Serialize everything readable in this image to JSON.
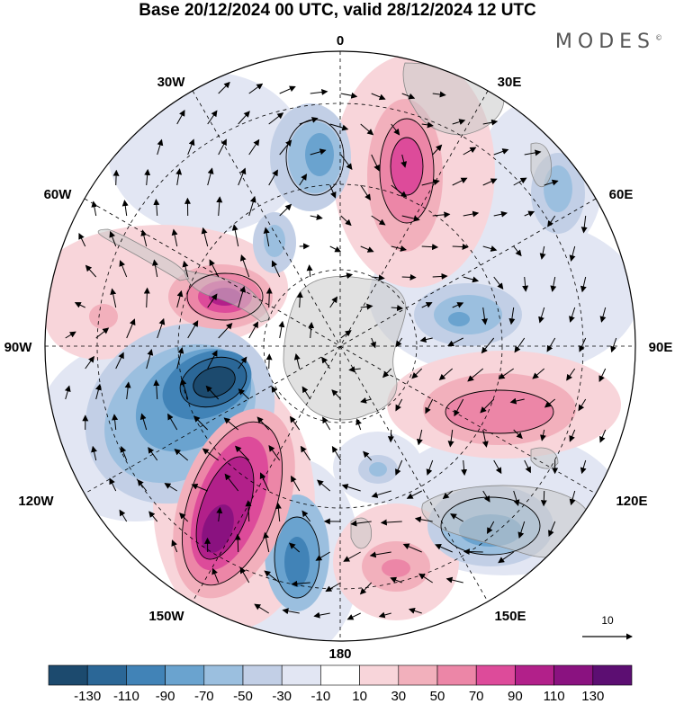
{
  "header": {
    "title": "Base 20/12/2024 00 UTC, valid 28/12/2024 12 UTC",
    "brand": "MODES",
    "brand_mark": "©"
  },
  "map": {
    "projection": "south-polar-stereographic",
    "longitude_labels": {
      "top": "0",
      "bottom": "180",
      "left": "90W",
      "right": "90E",
      "upper_left_1": "30W",
      "upper_left_2": "60W",
      "upper_right_1": "30E",
      "upper_right_2": "60E",
      "lower_left_1": "120W",
      "lower_left_2": "150W",
      "lower_right_1": "120E",
      "lower_right_2": "150E"
    },
    "reference_vector": "10"
  },
  "colorbar": {
    "labels": [
      "-130",
      "-110",
      "-90",
      "-70",
      "-50",
      "-30",
      "-10",
      "10",
      "30",
      "50",
      "70",
      "90",
      "110",
      "130"
    ],
    "colors": [
      "#1c4a6e",
      "#2b6797",
      "#4183b7",
      "#6aa3cf",
      "#9bbfdf",
      "#c2cfe6",
      "#e2e6f3",
      "#ffffff",
      "#f8d5da",
      "#f2b0bc",
      "#ec86a7",
      "#dd4b9a",
      "#b2208a",
      "#8a1280",
      "#5c0e72"
    ]
  }
}
